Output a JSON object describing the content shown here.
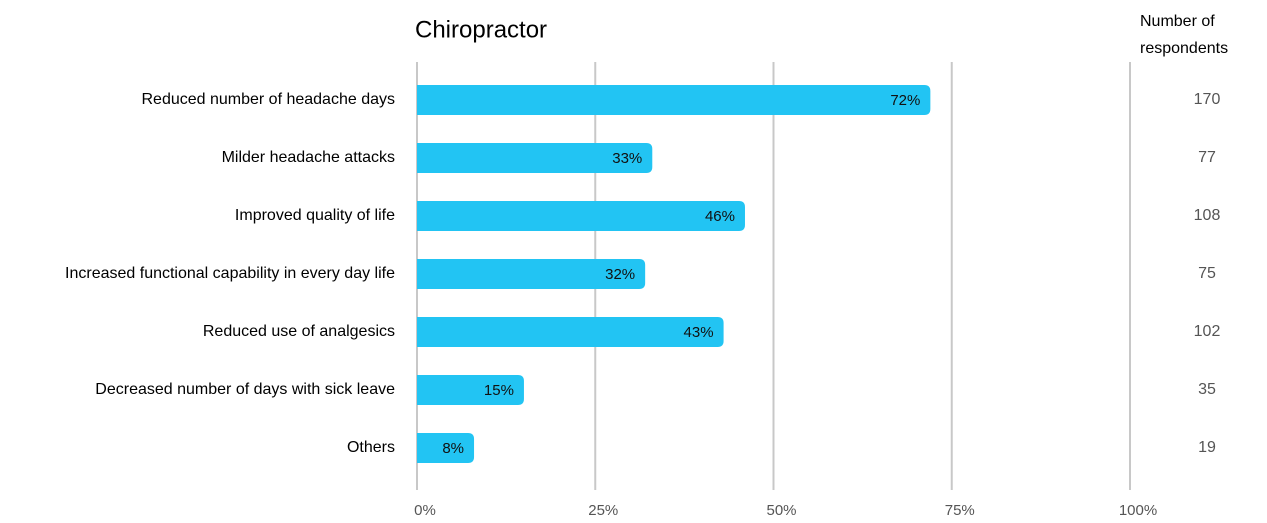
{
  "chart_data": {
    "type": "hbar",
    "title": "Chiropractor",
    "categories": [
      "Reduced number of headache days",
      "Milder headache attacks",
      "Improved quality of life",
      "Increased functional capability in every day life",
      "Reduced use of analgesics",
      "Decreased number of days with sick leave",
      "Others"
    ],
    "values": [
      72,
      33,
      46,
      32,
      43,
      15,
      8
    ],
    "value_labels": [
      "72%",
      "33%",
      "46%",
      "32%",
      "43%",
      "15%",
      "8%"
    ],
    "color": "#22c4f3",
    "xlim": [
      0,
      100
    ],
    "xticks": [
      {
        "value": 0,
        "label": "0%"
      },
      {
        "value": 25,
        "label": "25%"
      },
      {
        "value": 50,
        "label": "50%"
      },
      {
        "value": 75,
        "label": "75%"
      },
      {
        "value": 100,
        "label": "100%"
      }
    ],
    "grid": true,
    "respondents": {
      "label": "Number of respondents",
      "values": [
        170,
        77,
        108,
        75,
        102,
        35,
        19
      ]
    }
  }
}
